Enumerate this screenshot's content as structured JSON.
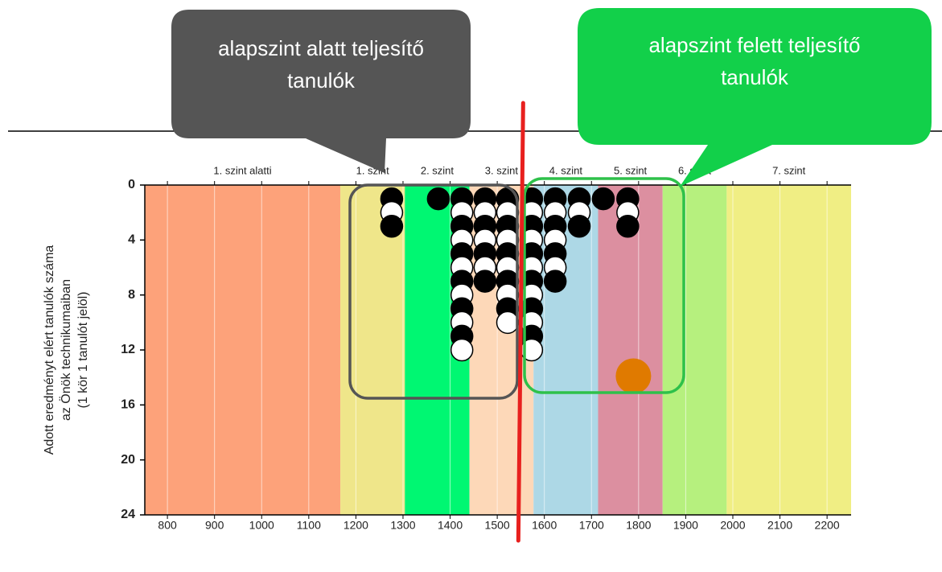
{
  "chart_data": {
    "type": "dot-stack",
    "callouts": [
      {
        "lines": [
          "alapszint alatt teljesítő",
          "tanulók"
        ],
        "color": "#555555"
      },
      {
        "lines": [
          "alapszint felett teljesítő",
          "tanulók"
        ],
        "color": "#12d04a"
      }
    ],
    "y_label": [
      "Adott eredményt elért tanulók száma",
      "az Önök technikumaiban",
      "(1 kör 1 tanulót jelöl)"
    ],
    "levels": [
      {
        "label": "1. szint alatti",
        "from": 752,
        "to": 1167,
        "color": "#fda27a"
      },
      {
        "label": "1. szint",
        "from": 1167,
        "to": 1304,
        "color": "#efe68a"
      },
      {
        "label": "2. szint",
        "from": 1304,
        "to": 1441,
        "color": "#00f772"
      },
      {
        "label": "3. szint",
        "from": 1441,
        "to": 1577,
        "color": "#fdd8b8"
      },
      {
        "label": "4. szint",
        "from": 1577,
        "to": 1714,
        "color": "#add8e6"
      },
      {
        "label": "5. szint",
        "from": 1714,
        "to": 1851,
        "color": "#dc8fa0"
      },
      {
        "label": "6. szint",
        "from": 1851,
        "to": 1987,
        "color": "#b6f07e"
      },
      {
        "label": "7. szint",
        "from": 1987,
        "to": 2251,
        "color": "#f0ee84"
      }
    ],
    "x": [
      1276,
      1375,
      1425,
      1474,
      1522,
      1573,
      1623,
      1674,
      1725,
      1777
    ],
    "counts": [
      3,
      1,
      12,
      7,
      10,
      12,
      7,
      3,
      1,
      3
    ],
    "average": {
      "x": 1789,
      "y": 13.9,
      "color": "#e07a00"
    },
    "threshold": 1555,
    "xlim": [
      752,
      2251
    ],
    "ylim": [
      24,
      0
    ],
    "xticks": [
      800,
      900,
      1000,
      1100,
      1200,
      1300,
      1400,
      1500,
      1600,
      1700,
      1800,
      1900,
      2000,
      2100,
      2200
    ],
    "yticks": [
      0,
      4,
      8,
      12,
      16,
      20,
      24
    ]
  }
}
